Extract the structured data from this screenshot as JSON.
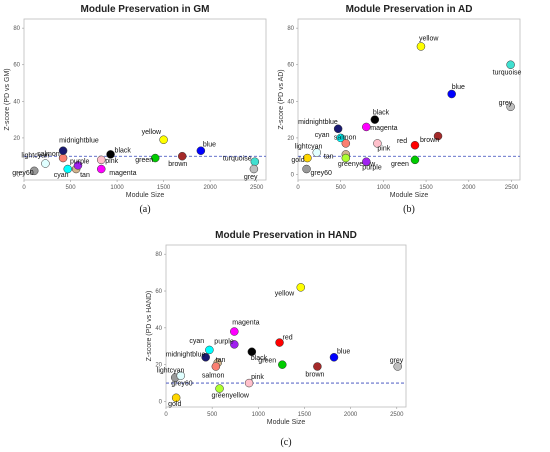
{
  "chart_data": [
    {
      "type": "scatter",
      "panel": "a",
      "caption": "(a)",
      "title": "Module Preservation in GM",
      "xlabel": "Module Size",
      "ylabel": "Z-score (PD vs GM)",
      "xlim": [
        0,
        2600
      ],
      "ylim": [
        -3,
        85
      ],
      "xticks": [
        "0",
        "500",
        "1000",
        "1500",
        "2000",
        "2500"
      ],
      "yticks": [
        "0",
        "20",
        "40",
        "60",
        "80"
      ],
      "threshold": 10,
      "grid": false,
      "points": [
        {
          "name": "grey60",
          "x": 110,
          "y": 2,
          "color": "#999999"
        },
        {
          "name": "lightcyan",
          "x": 230,
          "y": 6,
          "color": "#e0ffff"
        },
        {
          "name": "salmon",
          "x": 420,
          "y": 9,
          "color": "#fa8072"
        },
        {
          "name": "midnightblue",
          "x": 420,
          "y": 13,
          "color": "#191970"
        },
        {
          "name": "cyan",
          "x": 470,
          "y": 3,
          "color": "#00ffff"
        },
        {
          "name": "tan",
          "x": 560,
          "y": 3,
          "color": "#d2b48c"
        },
        {
          "name": "purple",
          "x": 580,
          "y": 5,
          "color": "#a020f0"
        },
        {
          "name": "magenta",
          "x": 830,
          "y": 3,
          "color": "#ff00ff"
        },
        {
          "name": "pink",
          "x": 830,
          "y": 8,
          "color": "#ffc0cb"
        },
        {
          "name": "black",
          "x": 930,
          "y": 11,
          "color": "#000000"
        },
        {
          "name": "yellow",
          "x": 1500,
          "y": 19,
          "color": "#ffff00"
        },
        {
          "name": "green",
          "x": 1410,
          "y": 9,
          "color": "#00cc00"
        },
        {
          "name": "brown",
          "x": 1700,
          "y": 10,
          "color": "#a52a2a"
        },
        {
          "name": "blue",
          "x": 1900,
          "y": 13,
          "color": "#0000ff"
        },
        {
          "name": "turquoise",
          "x": 2480,
          "y": 7,
          "color": "#40e0d0"
        },
        {
          "name": "grey",
          "x": 2470,
          "y": 3,
          "color": "#bebebe"
        }
      ]
    },
    {
      "type": "scatter",
      "panel": "b",
      "caption": "(b)",
      "title": "Module Preservation in AD",
      "xlabel": "Module Size",
      "ylabel": "Z-score (PD vs AD)",
      "xlim": [
        0,
        2600
      ],
      "ylim": [
        -3,
        85
      ],
      "xticks": [
        "0",
        "500",
        "1000",
        "1500",
        "2000",
        "2500"
      ],
      "yticks": [
        "0",
        "20",
        "40",
        "60",
        "80"
      ],
      "threshold": 10,
      "grid": false,
      "points": [
        {
          "name": "gold",
          "x": 110,
          "y": 9,
          "color": "#ffd700"
        },
        {
          "name": "grey60",
          "x": 100,
          "y": 3,
          "color": "#999999"
        },
        {
          "name": "lightcyan",
          "x": 220,
          "y": 12,
          "color": "#e0ffff"
        },
        {
          "name": "midnightblue",
          "x": 470,
          "y": 25,
          "color": "#191970"
        },
        {
          "name": "cyan",
          "x": 500,
          "y": 20,
          "color": "#00ffff"
        },
        {
          "name": "salmon",
          "x": 560,
          "y": 17,
          "color": "#fa8072"
        },
        {
          "name": "tan",
          "x": 560,
          "y": 11,
          "color": "#d2b48c"
        },
        {
          "name": "greenyellow",
          "x": 560,
          "y": 9,
          "color": "#adff2f"
        },
        {
          "name": "black",
          "x": 900,
          "y": 30,
          "color": "#000000"
        },
        {
          "name": "magenta",
          "x": 800,
          "y": 26,
          "color": "#ff00ff"
        },
        {
          "name": "pink",
          "x": 930,
          "y": 17,
          "color": "#ffc0cb"
        },
        {
          "name": "purple",
          "x": 800,
          "y": 7,
          "color": "#a020f0"
        },
        {
          "name": "red",
          "x": 1370,
          "y": 16,
          "color": "#ff0000"
        },
        {
          "name": "green",
          "x": 1370,
          "y": 8,
          "color": "#00cc00"
        },
        {
          "name": "brown",
          "x": 1640,
          "y": 21,
          "color": "#a52a2a"
        },
        {
          "name": "yellow",
          "x": 1440,
          "y": 70,
          "color": "#ffff00"
        },
        {
          "name": "blue",
          "x": 1800,
          "y": 44,
          "color": "#0000ff"
        },
        {
          "name": "turquoise",
          "x": 2490,
          "y": 60,
          "color": "#40e0d0"
        },
        {
          "name": "grey",
          "x": 2490,
          "y": 37,
          "color": "#bebebe"
        }
      ]
    },
    {
      "type": "scatter",
      "panel": "c",
      "caption": "(c)",
      "title": "Module Preservation in HAND",
      "xlabel": "Module Size",
      "ylabel": "Z-score (PD vs HAND)",
      "xlim": [
        0,
        2600
      ],
      "ylim": [
        -3,
        85
      ],
      "xticks": [
        "0",
        "500",
        "1000",
        "1500",
        "2000",
        "2500"
      ],
      "yticks": [
        "0",
        "20",
        "40",
        "60",
        "80"
      ],
      "threshold": 10,
      "grid": false,
      "points": [
        {
          "name": "gold",
          "x": 110,
          "y": 2,
          "color": "#ffd700"
        },
        {
          "name": "grey60",
          "x": 100,
          "y": 13,
          "color": "#999999"
        },
        {
          "name": "lightcyan",
          "x": 160,
          "y": 14,
          "color": "#e0ffff"
        },
        {
          "name": "midnightblue",
          "x": 430,
          "y": 24,
          "color": "#191970"
        },
        {
          "name": "cyan",
          "x": 470,
          "y": 28,
          "color": "#00ffff"
        },
        {
          "name": "tan",
          "x": 560,
          "y": 21,
          "color": "#d2b48c"
        },
        {
          "name": "salmon",
          "x": 540,
          "y": 19,
          "color": "#fa8072"
        },
        {
          "name": "greenyellow",
          "x": 580,
          "y": 7,
          "color": "#adff2f"
        },
        {
          "name": "purple",
          "x": 740,
          "y": 31,
          "color": "#a020f0"
        },
        {
          "name": "magenta",
          "x": 740,
          "y": 38,
          "color": "#ff00ff"
        },
        {
          "name": "black",
          "x": 930,
          "y": 27,
          "color": "#000000"
        },
        {
          "name": "pink",
          "x": 900,
          "y": 10,
          "color": "#ffc0cb"
        },
        {
          "name": "red",
          "x": 1230,
          "y": 32,
          "color": "#ff0000"
        },
        {
          "name": "green",
          "x": 1260,
          "y": 20,
          "color": "#00cc00"
        },
        {
          "name": "yellow",
          "x": 1460,
          "y": 62,
          "color": "#ffff00"
        },
        {
          "name": "brown",
          "x": 1640,
          "y": 19,
          "color": "#a52a2a"
        },
        {
          "name": "blue",
          "x": 1820,
          "y": 24,
          "color": "#0000ff"
        },
        {
          "name": "grey",
          "x": 2510,
          "y": 19,
          "color": "#bebebe"
        }
      ]
    }
  ]
}
